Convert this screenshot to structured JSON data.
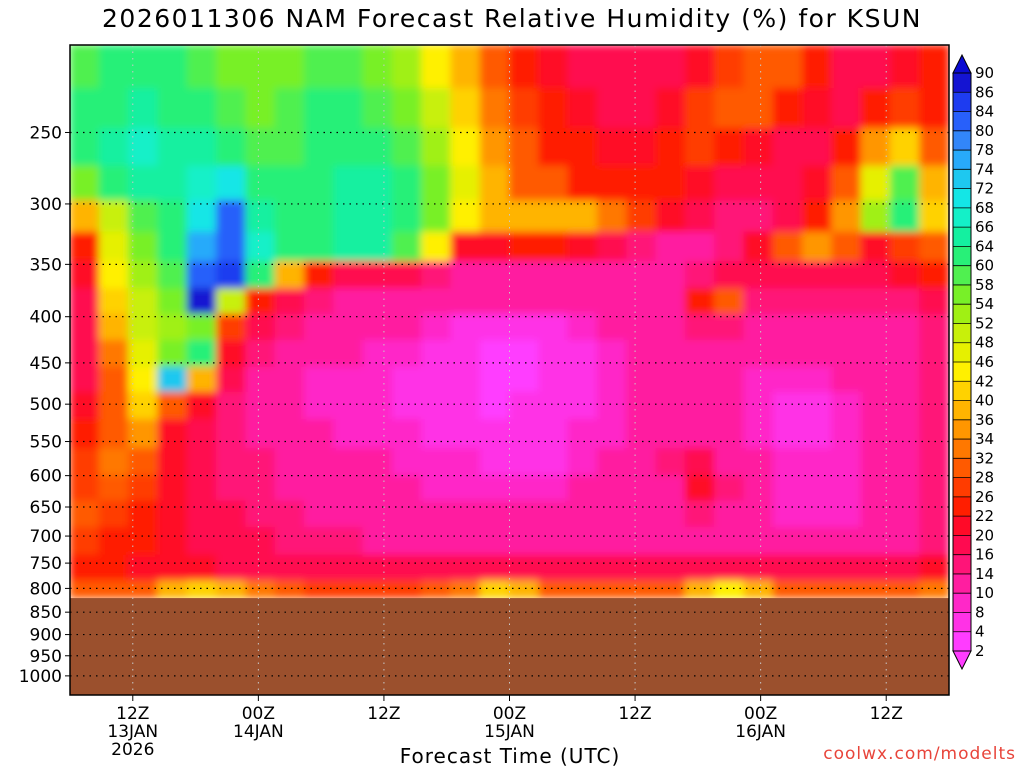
{
  "title": "2026011306 NAM Forecast Relative Humidity (%) for KSUN",
  "credit": "coolwx.com/modelts",
  "chart_data": {
    "type": "heatmap",
    "title": "2026011306 NAM Forecast Relative Humidity (%) for KSUN",
    "xlabel": "Forecast Time (UTC)",
    "ylabel": "",
    "x_ticks": [
      {
        "label": "12Z",
        "sub": "13JAN",
        "sub2": "2026",
        "hours": 6
      },
      {
        "label": "00Z",
        "sub": "14JAN",
        "sub2": "",
        "hours": 18
      },
      {
        "label": "12Z",
        "sub": "",
        "sub2": "",
        "hours": 30
      },
      {
        "label": "00Z",
        "sub": "15JAN",
        "sub2": "",
        "hours": 42
      },
      {
        "label": "12Z",
        "sub": "",
        "sub2": "",
        "hours": 54
      },
      {
        "label": "00Z",
        "sub": "16JAN",
        "sub2": "",
        "hours": 66
      },
      {
        "label": "12Z",
        "sub": "",
        "sub2": "",
        "hours": 78
      }
    ],
    "xlim_hours": [
      0,
      84
    ],
    "y_ticks": [
      250,
      300,
      350,
      400,
      450,
      500,
      550,
      600,
      650,
      700,
      750,
      800,
      850,
      900,
      950,
      1000
    ],
    "ylim_hpa": [
      200,
      1050
    ],
    "y_scale": "log-pressure",
    "grid": true,
    "surface_pressure_hpa": 820,
    "below_ground_color": "#9b502d",
    "colorbar_labels": [
      90,
      86,
      84,
      80,
      78,
      74,
      72,
      68,
      66,
      64,
      60,
      58,
      54,
      52,
      48,
      46,
      42,
      40,
      36,
      34,
      32,
      28,
      26,
      22,
      20,
      16,
      14,
      10,
      8,
      4,
      2
    ],
    "colorbar_colors": [
      "#1414d2",
      "#1e3cf0",
      "#2860fa",
      "#3286fa",
      "#28aafa",
      "#1ec8f0",
      "#14e6e6",
      "#14f0c8",
      "#14f0a0",
      "#28f078",
      "#50f050",
      "#78f028",
      "#a0f014",
      "#c8f00a",
      "#e6f000",
      "#fff000",
      "#ffd200",
      "#ffb400",
      "#ff9600",
      "#ff7800",
      "#ff5a00",
      "#ff3c00",
      "#ff1e00",
      "#ff0a28",
      "#ff0a50",
      "#ff1478",
      "#ff1ea0",
      "#ff28c8",
      "#ff32e6",
      "#ff3cff"
    ],
    "values": [
      [
        58,
        60,
        62,
        60,
        58,
        56,
        55,
        56,
        58,
        58,
        56,
        52,
        45,
        38,
        30,
        24,
        20,
        18,
        17,
        17,
        18,
        20,
        26,
        30,
        28,
        22,
        18,
        18,
        20,
        22
      ],
      [
        60,
        62,
        64,
        62,
        60,
        58,
        56,
        58,
        60,
        60,
        58,
        54,
        48,
        40,
        32,
        26,
        22,
        20,
        18,
        18,
        20,
        26,
        30,
        28,
        24,
        20,
        18,
        22,
        26,
        24
      ],
      [
        60,
        64,
        66,
        64,
        64,
        62,
        58,
        58,
        60,
        62,
        62,
        58,
        52,
        44,
        34,
        28,
        24,
        22,
        20,
        20,
        22,
        26,
        24,
        20,
        18,
        18,
        22,
        34,
        40,
        30
      ],
      [
        56,
        60,
        64,
        64,
        66,
        70,
        62,
        60,
        62,
        64,
        64,
        60,
        56,
        46,
        36,
        30,
        28,
        24,
        22,
        22,
        22,
        20,
        18,
        16,
        16,
        20,
        30,
        46,
        58,
        36
      ],
      [
        36,
        50,
        58,
        62,
        70,
        80,
        64,
        60,
        62,
        64,
        64,
        60,
        56,
        44,
        38,
        36,
        38,
        36,
        32,
        26,
        20,
        16,
        14,
        14,
        16,
        24,
        34,
        52,
        60,
        40
      ],
      [
        24,
        46,
        56,
        62,
        76,
        82,
        66,
        62,
        62,
        64,
        64,
        58,
        42,
        20,
        20,
        22,
        22,
        20,
        16,
        14,
        12,
        12,
        14,
        20,
        30,
        34,
        28,
        20,
        26,
        28
      ],
      [
        20,
        44,
        52,
        58,
        82,
        84,
        60,
        36,
        22,
        18,
        18,
        18,
        14,
        12,
        12,
        12,
        12,
        12,
        12,
        12,
        12,
        14,
        16,
        18,
        18,
        18,
        18,
        18,
        20,
        22
      ],
      [
        18,
        40,
        50,
        56,
        86,
        48,
        24,
        16,
        14,
        12,
        12,
        12,
        12,
        12,
        12,
        12,
        12,
        12,
        12,
        12,
        12,
        22,
        30,
        14,
        14,
        14,
        14,
        14,
        14,
        16
      ],
      [
        16,
        36,
        48,
        52,
        56,
        26,
        16,
        14,
        12,
        12,
        10,
        10,
        8,
        6,
        4,
        4,
        6,
        8,
        10,
        10,
        12,
        14,
        14,
        12,
        12,
        12,
        12,
        12,
        12,
        14
      ],
      [
        16,
        32,
        46,
        54,
        60,
        20,
        14,
        12,
        10,
        10,
        8,
        8,
        6,
        4,
        2,
        2,
        4,
        6,
        8,
        10,
        12,
        12,
        12,
        10,
        10,
        10,
        10,
        10,
        12,
        14
      ],
      [
        18,
        30,
        44,
        72,
        36,
        18,
        12,
        10,
        8,
        8,
        8,
        6,
        6,
        4,
        2,
        2,
        4,
        6,
        8,
        10,
        12,
        12,
        10,
        8,
        8,
        8,
        10,
        10,
        12,
        14
      ],
      [
        20,
        30,
        40,
        30,
        20,
        14,
        12,
        10,
        8,
        8,
        8,
        6,
        6,
        4,
        2,
        4,
        4,
        6,
        8,
        10,
        12,
        12,
        10,
        8,
        6,
        6,
        8,
        10,
        12,
        14
      ],
      [
        24,
        30,
        34,
        20,
        16,
        14,
        12,
        10,
        10,
        8,
        8,
        8,
        6,
        6,
        4,
        4,
        6,
        8,
        8,
        10,
        12,
        12,
        10,
        8,
        6,
        6,
        8,
        10,
        12,
        14
      ],
      [
        26,
        32,
        30,
        20,
        16,
        14,
        14,
        12,
        10,
        10,
        10,
        8,
        8,
        8,
        6,
        6,
        6,
        8,
        10,
        10,
        14,
        18,
        12,
        10,
        8,
        8,
        8,
        10,
        12,
        14
      ],
      [
        26,
        28,
        26,
        20,
        16,
        14,
        14,
        12,
        12,
        10,
        10,
        10,
        8,
        8,
        8,
        8,
        8,
        10,
        10,
        10,
        12,
        20,
        14,
        10,
        8,
        8,
        8,
        10,
        12,
        14
      ],
      [
        28,
        26,
        24,
        20,
        18,
        16,
        14,
        14,
        12,
        12,
        12,
        10,
        10,
        10,
        10,
        10,
        10,
        10,
        10,
        10,
        12,
        14,
        12,
        10,
        8,
        8,
        8,
        10,
        12,
        14
      ],
      [
        26,
        24,
        22,
        20,
        18,
        16,
        16,
        14,
        14,
        14,
        12,
        12,
        12,
        12,
        12,
        12,
        12,
        12,
        12,
        12,
        12,
        12,
        12,
        12,
        10,
        10,
        10,
        10,
        12,
        14
      ],
      [
        22,
        22,
        20,
        20,
        20,
        18,
        18,
        18,
        16,
        16,
        16,
        16,
        16,
        16,
        16,
        16,
        16,
        16,
        16,
        16,
        16,
        16,
        16,
        16,
        16,
        16,
        16,
        16,
        18,
        20
      ],
      [
        30,
        28,
        30,
        36,
        40,
        38,
        32,
        28,
        26,
        26,
        26,
        26,
        28,
        32,
        40,
        38,
        30,
        28,
        28,
        28,
        30,
        36,
        42,
        36,
        30,
        28,
        28,
        28,
        30,
        32
      ]
    ],
    "value_levels_hpa": [
      212,
      235,
      260,
      285,
      310,
      335,
      360,
      385,
      410,
      440,
      470,
      500,
      540,
      580,
      620,
      660,
      710,
      760,
      810
    ]
  }
}
